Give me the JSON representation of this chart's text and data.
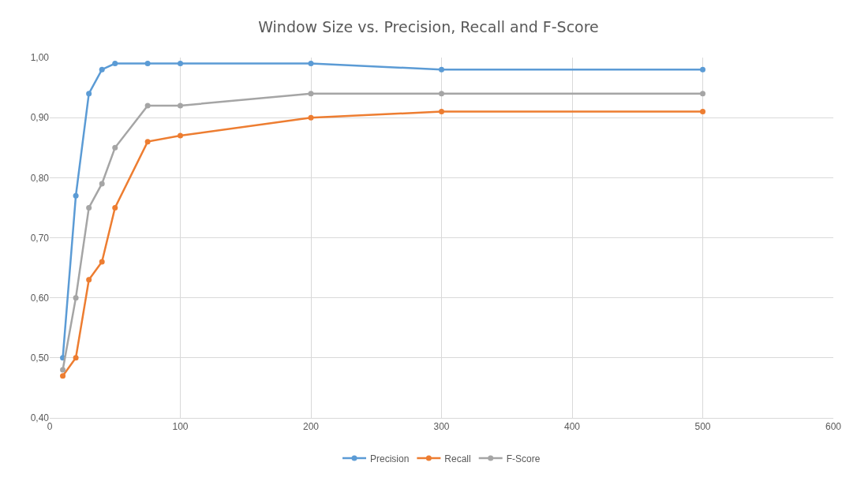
{
  "chart_data": {
    "type": "line",
    "title": "Window Size vs. Precision, Recall and F-Score",
    "x": [
      10,
      20,
      30,
      40,
      50,
      75,
      100,
      200,
      300,
      500
    ],
    "series": [
      {
        "name": "Precision",
        "color": "#5b9bd5",
        "values": [
          0.5,
          0.77,
          0.94,
          0.98,
          0.99,
          0.99,
          0.99,
          0.99,
          0.98,
          0.98
        ]
      },
      {
        "name": "Recall",
        "color": "#ed7d31",
        "values": [
          0.47,
          0.5,
          0.63,
          0.66,
          0.75,
          0.86,
          0.87,
          0.9,
          0.91,
          0.91
        ]
      },
      {
        "name": "F-Score",
        "color": "#a5a5a5",
        "values": [
          0.48,
          0.6,
          0.75,
          0.79,
          0.85,
          0.92,
          0.92,
          0.94,
          0.94,
          0.94
        ]
      }
    ],
    "xlim": [
      0,
      600
    ],
    "xticks": [
      0,
      100,
      200,
      300,
      400,
      500,
      600
    ],
    "ylim": [
      0.4,
      1.0
    ],
    "yticks": [
      {
        "value": 0.4,
        "label": "0,40"
      },
      {
        "value": 0.5,
        "label": "0,50"
      },
      {
        "value": 0.6,
        "label": "0,60"
      },
      {
        "value": 0.7,
        "label": "0,70"
      },
      {
        "value": 0.8,
        "label": "0,80"
      },
      {
        "value": 0.9,
        "label": "0,90"
      },
      {
        "value": 1.0,
        "label": "1,00"
      }
    ],
    "grid": true,
    "legend": "bottom",
    "marker": "circle",
    "line_style": "solid"
  }
}
